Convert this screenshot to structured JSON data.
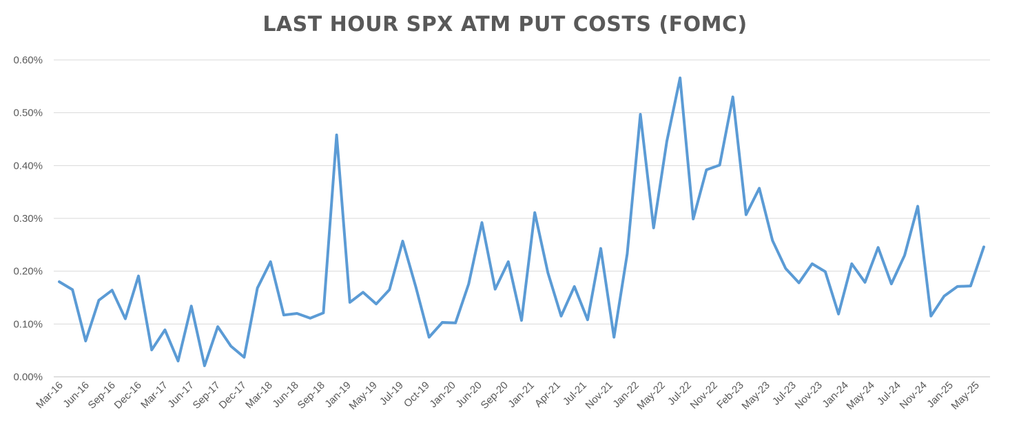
{
  "chart_data": {
    "type": "line",
    "title": "LAST HOUR SPX ATM PUT COSTS (FOMC)",
    "xlabel": "",
    "ylabel": "",
    "ylim": [
      0,
      0.6
    ],
    "y_ticks": [
      "0.00%",
      "0.10%",
      "0.20%",
      "0.30%",
      "0.40%",
      "0.50%",
      "0.60%"
    ],
    "grid": "horizontal",
    "line_color": "#5B9BD5",
    "x_tick_labels": [
      "Mar-16",
      "Jun-16",
      "Sep-16",
      "Dec-16",
      "Mar-17",
      "Jun-17",
      "Sep-17",
      "Dec-17",
      "Mar-18",
      "Jun-18",
      "Sep-18",
      "Jan-19",
      "May-19",
      "Jul-19",
      "Oct-19",
      "Jan-20",
      "Jun-20",
      "Sep-20",
      "Jan-21",
      "Apr-21",
      "Jul-21",
      "Nov-21",
      "Jan-22",
      "May-22",
      "Jul-22",
      "Nov-22",
      "Feb-23",
      "May-23",
      "Jul-23",
      "Nov-23",
      "Jan-24",
      "May-24",
      "Jul-24",
      "Nov-24",
      "Jan-25",
      "May-25"
    ],
    "series": [
      {
        "values": [
          0.18,
          0.165,
          0.068,
          0.145,
          0.164,
          0.11,
          0.191,
          0.051,
          0.089,
          0.03,
          0.134,
          0.021,
          0.095,
          0.058,
          0.037,
          0.168,
          0.218,
          0.117,
          0.12,
          0.111,
          0.121,
          0.458,
          0.141,
          0.16,
          0.138,
          0.165,
          0.257,
          0.17,
          0.075,
          0.103,
          0.102,
          0.176,
          0.292,
          0.166,
          0.218,
          0.107,
          0.311,
          0.197,
          0.115,
          0.171,
          0.108,
          0.243,
          0.075,
          0.233,
          0.497,
          0.282,
          0.446,
          0.566,
          0.299,
          0.392,
          0.401,
          0.53,
          0.307,
          0.357,
          0.258,
          0.205,
          0.178,
          0.214,
          0.199,
          0.119,
          0.214,
          0.179,
          0.245,
          0.176,
          0.23,
          0.323,
          0.115,
          0.153,
          0.171,
          0.172,
          0.246
        ]
      }
    ]
  }
}
